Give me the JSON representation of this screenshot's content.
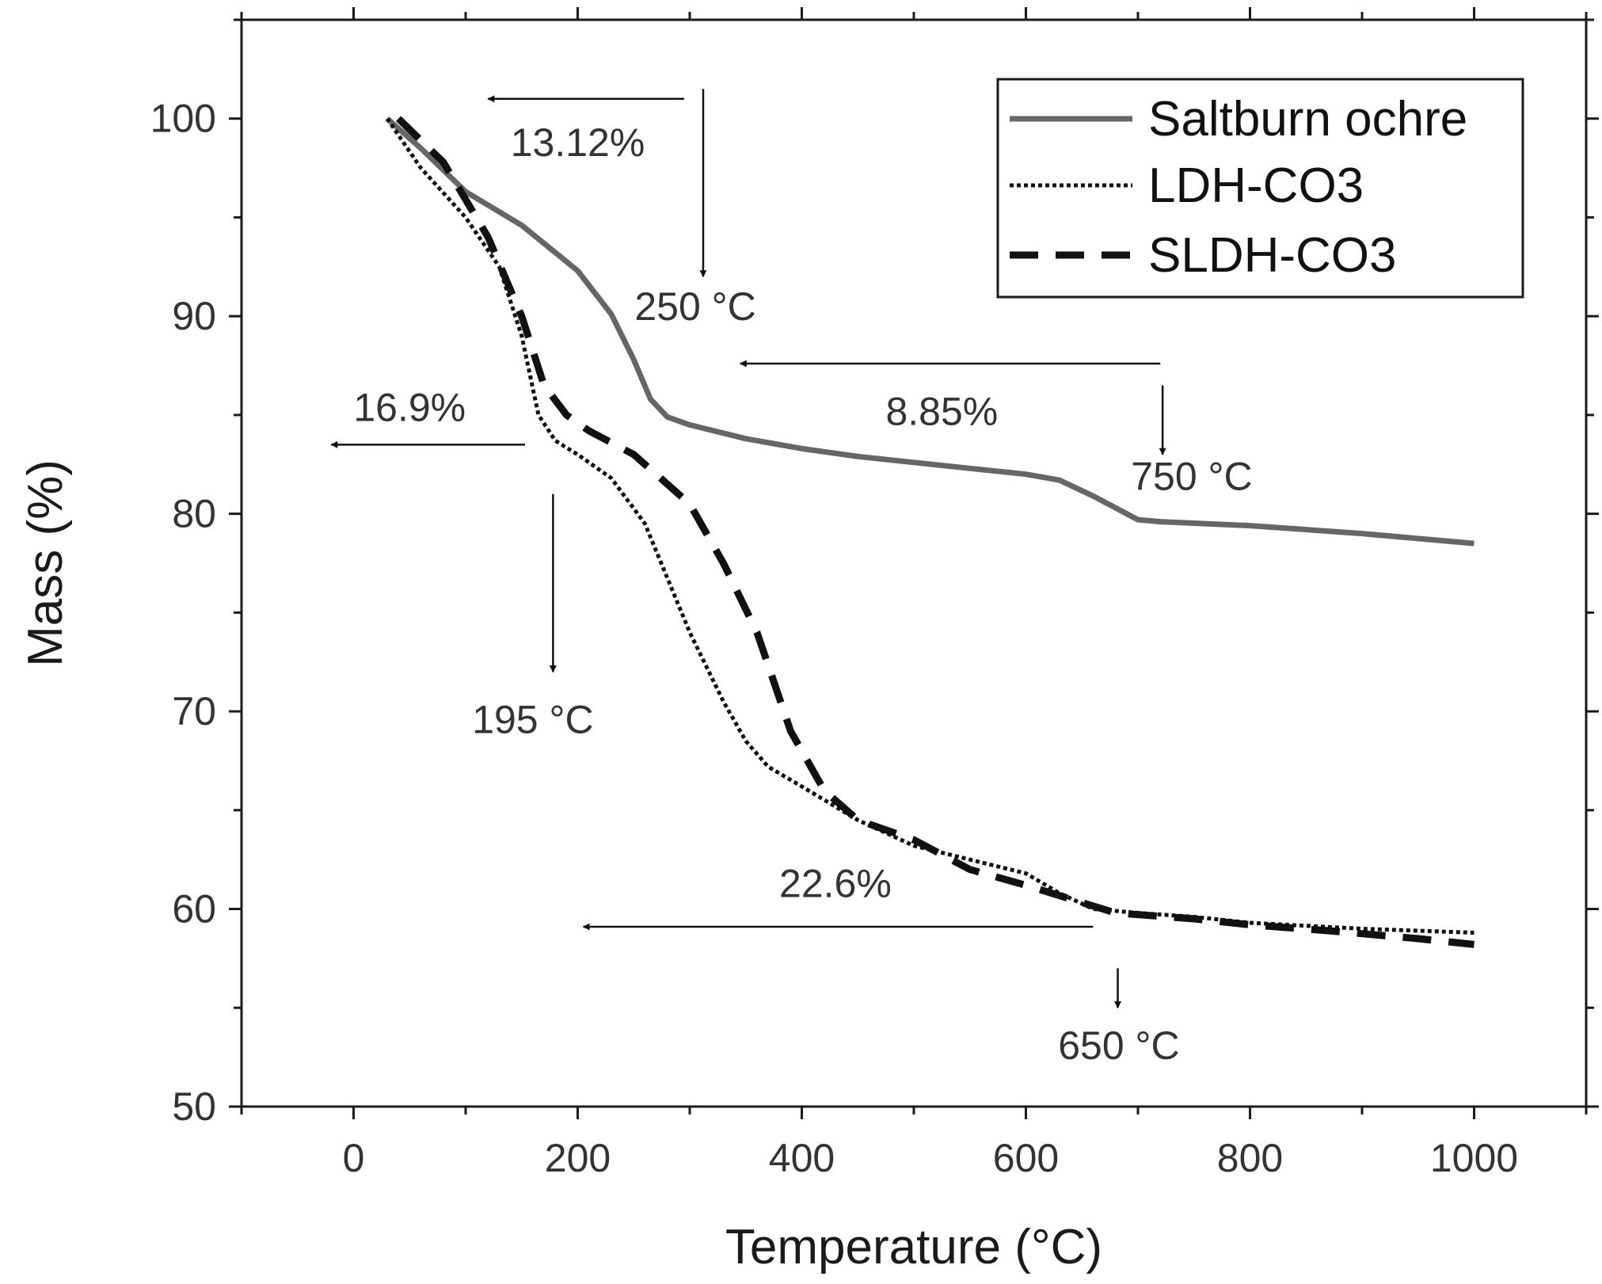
{
  "chart_data": {
    "type": "line",
    "title": "",
    "xlabel": "Temperature (°C)",
    "ylabel": "Mass (%)",
    "xlim": [
      -100,
      1100
    ],
    "ylim": [
      50,
      105
    ],
    "xticks": [
      0,
      200,
      400,
      600,
      800,
      1000
    ],
    "yticks": [
      50,
      60,
      70,
      80,
      90,
      100
    ],
    "grid": false,
    "legend": "top-right",
    "series": [
      {
        "name": "Saltburn ochre",
        "style": "solid",
        "color": "#666666",
        "x": [
          30,
          60,
          100,
          150,
          200,
          230,
          250,
          265,
          280,
          300,
          350,
          400,
          450,
          500,
          550,
          600,
          630,
          660,
          700,
          720,
          800,
          900,
          1000
        ],
        "y": [
          100,
          98.5,
          96.3,
          94.6,
          92.3,
          90.1,
          87.8,
          85.8,
          84.9,
          84.5,
          83.8,
          83.3,
          82.9,
          82.6,
          82.3,
          82.0,
          81.7,
          80.9,
          79.7,
          79.6,
          79.4,
          79.0,
          78.5
        ]
      },
      {
        "name": "LDH-CO3",
        "style": "dotted",
        "color": "#111111",
        "x": [
          30,
          60,
          100,
          130,
          150,
          165,
          180,
          200,
          230,
          260,
          300,
          330,
          350,
          370,
          400,
          450,
          500,
          550,
          600,
          630,
          660,
          700,
          750,
          800,
          900,
          1000
        ],
        "y": [
          100,
          97.5,
          95.0,
          92.5,
          89.0,
          85.0,
          83.7,
          83.0,
          81.8,
          79.5,
          74.0,
          70.5,
          68.5,
          67.2,
          66.2,
          64.5,
          63.2,
          62.5,
          61.8,
          60.8,
          60.0,
          59.8,
          59.6,
          59.3,
          59.0,
          58.8
        ]
      },
      {
        "name": "SLDH-CO3",
        "style": "dashed",
        "color": "#111111",
        "x": [
          40,
          80,
          120,
          150,
          170,
          190,
          210,
          250,
          300,
          330,
          360,
          390,
          420,
          450,
          500,
          550,
          600,
          640,
          680,
          750,
          800,
          870,
          950,
          1000
        ],
        "y": [
          100,
          97.8,
          94.0,
          90.0,
          86.5,
          85.0,
          84.2,
          83.0,
          80.5,
          77.5,
          74.0,
          69.0,
          66.0,
          64.5,
          63.5,
          62.0,
          61.2,
          60.5,
          59.8,
          59.5,
          59.2,
          58.9,
          58.5,
          58.2
        ]
      }
    ],
    "annotations": [
      {
        "id": "mass-loss-13-12",
        "text": "13.12%",
        "x": 200,
        "y": 98.1
      },
      {
        "id": "temp-250",
        "text": "250 °C",
        "x": 305,
        "y": 89.8
      },
      {
        "id": "mass-loss-8-85",
        "text": "8.85%",
        "x": 525,
        "y": 84.5
      },
      {
        "id": "temp-750",
        "text": "750 °C",
        "x": 748,
        "y": 81.2
      },
      {
        "id": "mass-loss-16-9",
        "text": "16.9%",
        "x": 50,
        "y": 84.7
      },
      {
        "id": "temp-195",
        "text": "195 °C",
        "x": 160,
        "y": 68.9
      },
      {
        "id": "mass-loss-22-6",
        "text": "22.6%",
        "x": 430,
        "y": 60.6
      },
      {
        "id": "temp-650",
        "text": "650 °C",
        "x": 683,
        "y": 52.4
      }
    ],
    "arrows": [
      {
        "id": "arrow-13-12-left",
        "from": [
          295,
          101.0
        ],
        "to": [
          120,
          101.0
        ]
      },
      {
        "id": "arrow-250-down",
        "from": [
          312,
          101.5
        ],
        "to": [
          312,
          92.0
        ]
      },
      {
        "id": "arrow-8-85-left",
        "from": [
          720,
          87.6
        ],
        "to": [
          345,
          87.6
        ]
      },
      {
        "id": "arrow-750-down",
        "from": [
          722,
          86.5
        ],
        "to": [
          722,
          83.0
        ]
      },
      {
        "id": "arrow-16-9-left",
        "from": [
          153,
          83.5
        ],
        "to": [
          -20,
          83.5
        ]
      },
      {
        "id": "arrow-195-down",
        "from": [
          178,
          81.0
        ],
        "to": [
          178,
          72.0
        ]
      },
      {
        "id": "arrow-22-6-left",
        "from": [
          660,
          59.1
        ],
        "to": [
          205,
          59.1
        ]
      },
      {
        "id": "arrow-650-down",
        "from": [
          682,
          57.0
        ],
        "to": [
          682,
          55.0
        ]
      }
    ]
  }
}
